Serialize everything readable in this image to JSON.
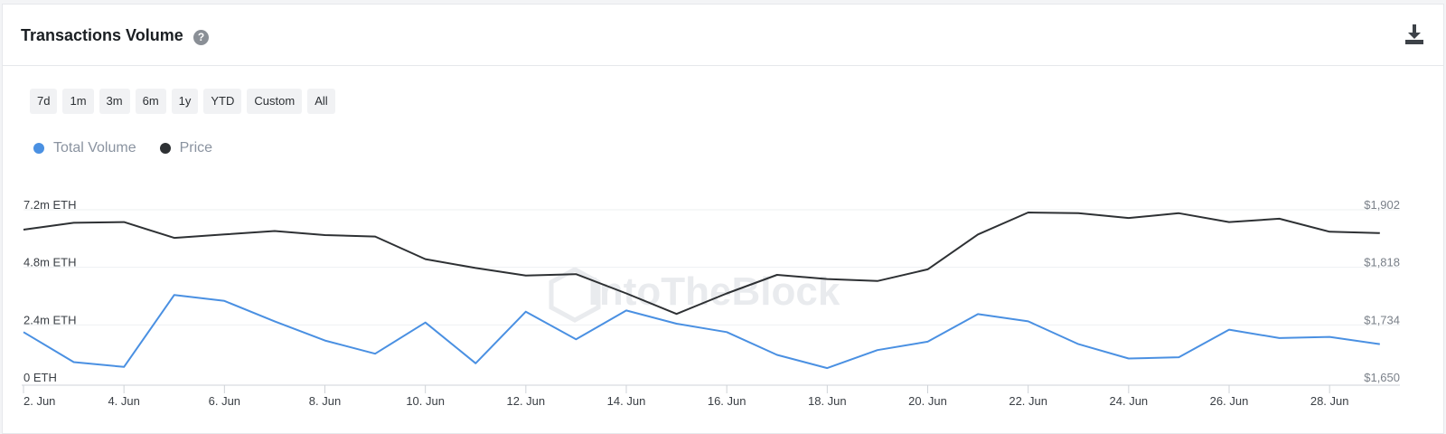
{
  "header": {
    "title": "Transactions Volume",
    "help_glyph": "?"
  },
  "ranges": [
    "7d",
    "1m",
    "3m",
    "6m",
    "1y",
    "YTD",
    "Custom",
    "All"
  ],
  "watermark": "IntoTheBlock",
  "colors": {
    "volume": "#4a90e2",
    "price": "#2e3134",
    "grid": "#eef0f2",
    "axis": "#cfd3d8"
  },
  "chart_data": {
    "type": "line",
    "x": [
      "2 Jun",
      "3 Jun",
      "4 Jun",
      "5 Jun",
      "6 Jun",
      "7 Jun",
      "8 Jun",
      "9 Jun",
      "10 Jun",
      "11 Jun",
      "12 Jun",
      "13 Jun",
      "14 Jun",
      "15 Jun",
      "16 Jun",
      "17 Jun",
      "18 Jun",
      "19 Jun",
      "20 Jun",
      "21 Jun",
      "22 Jun",
      "23 Jun",
      "24 Jun",
      "25 Jun",
      "26 Jun",
      "27 Jun",
      "28 Jun",
      "29 Jun"
    ],
    "x_tick_labels": [
      "2. Jun",
      "4. Jun",
      "6. Jun",
      "8. Jun",
      "10. Jun",
      "12. Jun",
      "14. Jun",
      "16. Jun",
      "18. Jun",
      "20. Jun",
      "22. Jun",
      "24. Jun",
      "26. Jun",
      "28. Jun"
    ],
    "x_tick_indices": [
      0,
      2,
      4,
      6,
      8,
      10,
      12,
      14,
      16,
      18,
      20,
      22,
      24,
      26
    ],
    "y_left": {
      "ticks": [
        "0 ETH",
        "2.4m ETH",
        "4.8m ETH",
        "7.2m ETH"
      ],
      "range": [
        0,
        7.2
      ]
    },
    "y_right": {
      "ticks": [
        "$1,650",
        "$1,734",
        "$1,818",
        "$1,902"
      ],
      "range": [
        1650,
        1902
      ]
    },
    "grid": true,
    "legend_position": "top-left",
    "series": [
      {
        "name": "Total Volume",
        "axis": "left",
        "values": [
          2.1,
          0.85,
          0.65,
          3.65,
          3.4,
          2.55,
          1.75,
          1.2,
          2.5,
          0.8,
          2.95,
          1.8,
          3.0,
          2.45,
          2.1,
          1.15,
          0.6,
          1.35,
          1.7,
          2.85,
          2.55,
          1.6,
          1.0,
          1.05,
          2.2,
          1.85,
          1.9,
          1.6
        ]
      },
      {
        "name": "Price",
        "axis": "right",
        "values": [
          1873,
          1883,
          1884,
          1861,
          1866,
          1871,
          1865,
          1863,
          1830,
          1817,
          1806,
          1808,
          1780,
          1750,
          1780,
          1807,
          1801,
          1798,
          1815,
          1866,
          1898,
          1897,
          1890,
          1897,
          1884,
          1889,
          1870,
          1868
        ]
      }
    ]
  }
}
